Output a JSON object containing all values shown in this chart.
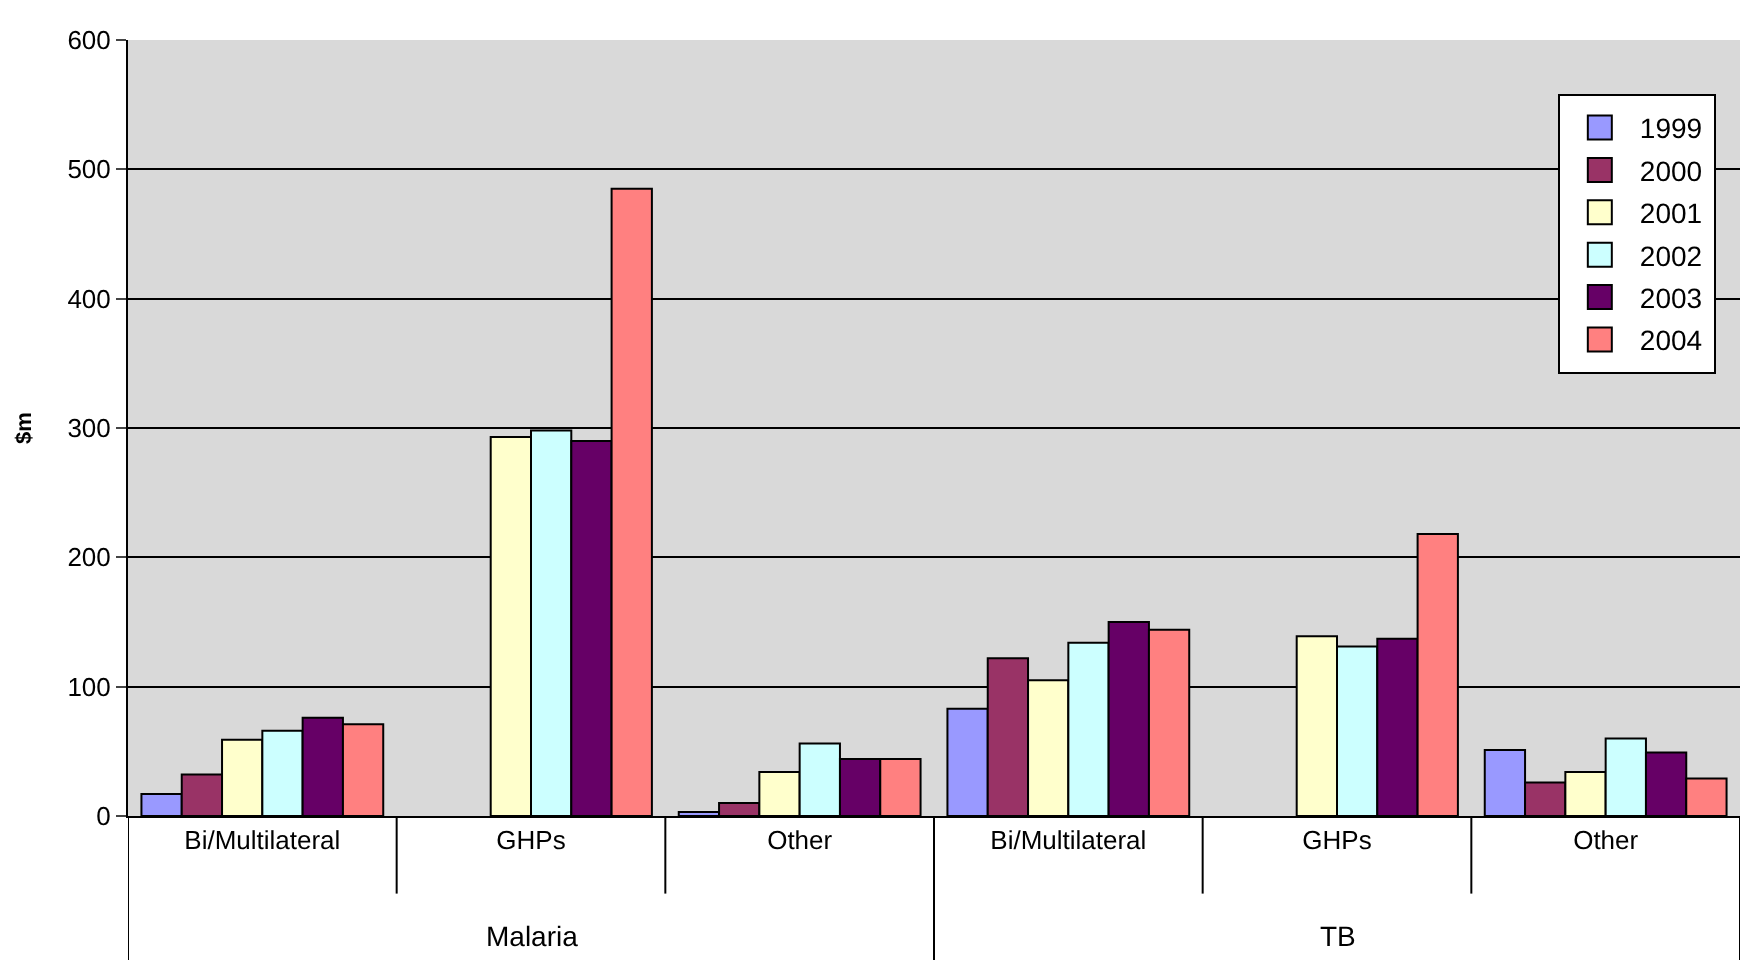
{
  "chart_data": {
    "type": "bar",
    "ylabel": "$m",
    "categories": [
      "Bi/Multilateral",
      "GHPs",
      "Other",
      "Bi/Multilateral",
      "GHPs",
      "Other"
    ],
    "annotations": [
      "Malaria",
      "TB"
    ],
    "series": [
      {
        "name": "1999",
        "color": "#9999ff",
        "values": [
          17,
          null,
          3,
          83,
          null,
          51
        ]
      },
      {
        "name": "2000",
        "color": "#993366",
        "values": [
          32,
          null,
          10,
          122,
          null,
          26
        ]
      },
      {
        "name": "2001",
        "color": "#ffffcc",
        "values": [
          59,
          293,
          34,
          105,
          139,
          34
        ]
      },
      {
        "name": "2002",
        "color": "#ccffff",
        "values": [
          66,
          298,
          56,
          134,
          131,
          60
        ]
      },
      {
        "name": "2003",
        "color": "#660066",
        "values": [
          76,
          290,
          44,
          150,
          137,
          49
        ]
      },
      {
        "name": "2004",
        "color": "#ff8080",
        "values": [
          71,
          485,
          44,
          144,
          218,
          29
        ]
      }
    ],
    "ylim": [
      0,
      600
    ],
    "yticks": [
      0,
      100,
      200,
      300,
      400,
      500,
      600
    ],
    "grid": "y",
    "legend": "top right"
  }
}
